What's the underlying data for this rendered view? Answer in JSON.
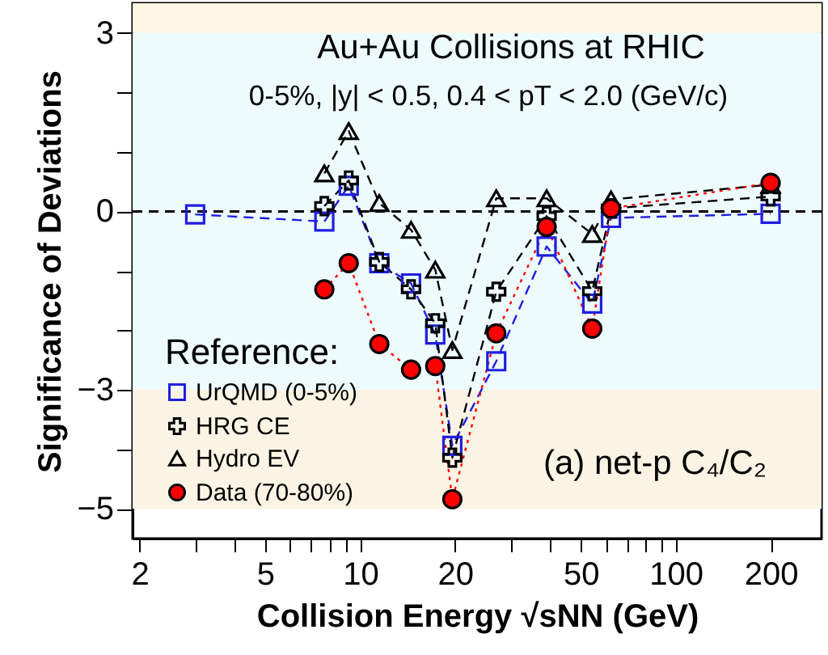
{
  "chart_data": {
    "type": "line",
    "title": "Au+Au Collisions at RHIC",
    "subtitle": "0-5%, |y| < 0.5, 0.4 < pT < 2.0 (GeV/c)",
    "xlabel": "Collision Energy √sNN (GeV)",
    "ylabel": "Significance of Deviations",
    "legend_title": "Reference:",
    "annotations": [
      "(a) net-p  C₄/C₂"
    ],
    "log": "x",
    "legend": "bottom left",
    "grid": false,
    "xlim": [
      1.9,
      290
    ],
    "ylim": [
      -5.5,
      3.5
    ],
    "xticks": [
      2,
      {
        "value": 3,
        "label": null
      },
      {
        "value": 4,
        "label": null
      },
      5,
      {
        "value": 6,
        "label": null
      },
      {
        "value": 7,
        "label": null
      },
      {
        "value": 8,
        "label": null
      },
      {
        "value": 9,
        "label": null
      },
      10,
      20,
      {
        "value": 30,
        "label": null
      },
      {
        "value": 40,
        "label": null
      },
      50,
      {
        "value": 60,
        "label": null
      },
      {
        "value": 70,
        "label": null
      },
      {
        "value": 80,
        "label": null
      },
      {
        "value": 90,
        "label": null
      },
      100,
      200
    ],
    "yticks": [
      -5,
      {
        "value": -4,
        "label": null
      },
      -3,
      {
        "value": -2,
        "label": null
      },
      {
        "value": -1,
        "label": null
      },
      0,
      {
        "value": 1,
        "label": null
      },
      {
        "value": 2,
        "label": null
      },
      3
    ],
    "ref_lines": [
      {
        "axis": "y",
        "value": 0,
        "color": "#000000",
        "line_style": "dashed"
      }
    ],
    "bands": [
      {
        "axis": "y",
        "from": 3,
        "to": 3.5,
        "color": "#fdf6e3"
      },
      {
        "axis": "y",
        "from": -3,
        "to": 3,
        "color": "#eefbfc"
      },
      {
        "axis": "y",
        "from": -5,
        "to": -3,
        "color": "#fbf4e4"
      }
    ],
    "series": [
      {
        "name": "UrQMD (0-5%)",
        "color": "#1f1fe0",
        "marker": "square",
        "line_style": "dashed",
        "x": [
          3,
          7.7,
          9.2,
          11.5,
          14.5,
          17.3,
          19.6,
          27,
          39,
          54.4,
          62.4,
          200
        ],
        "values": [
          -0.05,
          -0.17,
          0.43,
          -0.87,
          -1.21,
          -2.07,
          -3.94,
          -2.52,
          -0.59,
          -1.55,
          -0.11,
          -0.04
        ]
      },
      {
        "name": "HRG CE",
        "color": "#000000",
        "marker": "cross",
        "line_style": "dashed",
        "x": [
          7.7,
          9.2,
          11.5,
          14.5,
          17.3,
          19.6,
          27,
          39,
          54.4,
          62.4,
          200
        ],
        "values": [
          0.09,
          0.52,
          -0.85,
          -1.31,
          -1.88,
          -4.14,
          -1.35,
          -0.08,
          -1.34,
          0.05,
          0.25
        ]
      },
      {
        "name": "Hydro EV",
        "color": "#000000",
        "marker": "triangle",
        "line_style": "dashed",
        "x": [
          7.7,
          9.2,
          11.5,
          14.5,
          17.3,
          19.6,
          27,
          39,
          54.4,
          62.4,
          200
        ],
        "values": [
          0.64,
          1.35,
          0.14,
          -0.31,
          -0.98,
          -2.33,
          0.22,
          0.22,
          -0.38,
          0.2,
          0.45
        ]
      },
      {
        "name": "Data (70-80%)",
        "color": "#ff0000",
        "marker": "circle",
        "line_style": "dotted",
        "x": [
          7.7,
          9.2,
          11.5,
          14.5,
          17.3,
          19.6,
          27,
          39,
          54.4,
          62.4,
          200
        ],
        "values": [
          -1.31,
          -0.87,
          -2.23,
          -2.66,
          -2.6,
          -4.84,
          -2.05,
          -0.26,
          -1.97,
          0.05,
          0.48
        ]
      }
    ]
  }
}
